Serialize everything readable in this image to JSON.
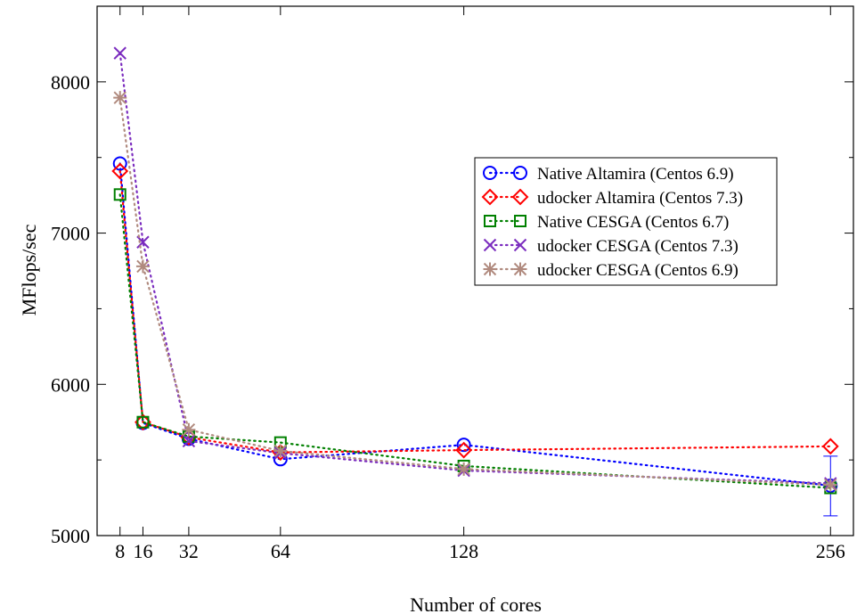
{
  "chart_data": {
    "type": "line",
    "title": "",
    "xlabel": "Number of cores",
    "ylabel": "MFlops/sec",
    "x": [
      8,
      16,
      32,
      64,
      128,
      256
    ],
    "xticks": [
      8,
      16,
      32,
      64,
      128,
      256
    ],
    "xlim": [
      0,
      264
    ],
    "ylim": [
      5000,
      8500
    ],
    "yticks": [
      5000,
      6000,
      7000,
      8000
    ],
    "grid": false,
    "legend_position": "right",
    "series": [
      {
        "name": "Native Altamira (Centos 6.9)",
        "color": "#0000ff",
        "marker": "circle",
        "values": [
          7460,
          5745,
          5640,
          5505,
          5600,
          5330
        ],
        "error_bar": {
          "x": 256,
          "low": 5130,
          "high": 5525
        }
      },
      {
        "name": "udocker Altamira (Centos 7.3)",
        "color": "#ff0000",
        "marker": "diamond",
        "values": [
          7410,
          5750,
          5650,
          5550,
          5565,
          5590
        ]
      },
      {
        "name": "Native CESGA (Centos 6.7)",
        "color": "#008000",
        "marker": "square",
        "values": [
          7255,
          5750,
          5655,
          5615,
          5460,
          5315
        ]
      },
      {
        "name": "udocker CESGA (Centos 7.3)",
        "color": "#7b2cbf",
        "marker": "x",
        "values": [
          8190,
          6940,
          5625,
          5545,
          5430,
          5345
        ]
      },
      {
        "name": "udocker CESGA (Centos 6.9)",
        "color": "#b08a7e",
        "marker": "asterisk",
        "values": [
          7895,
          6780,
          5700,
          5560,
          5440,
          5335
        ]
      }
    ]
  }
}
